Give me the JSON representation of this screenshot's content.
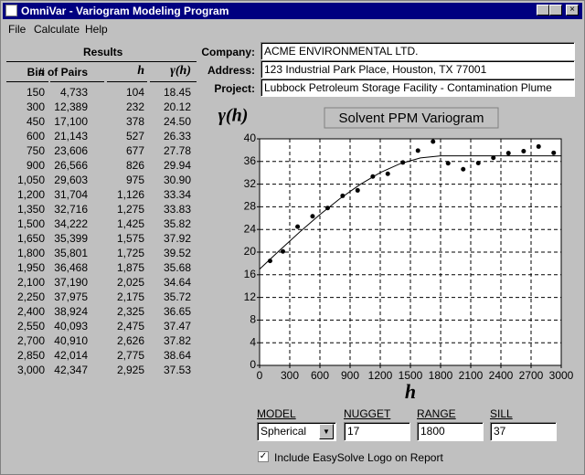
{
  "window": {
    "title": "OmniVar - Variogram Modeling Program"
  },
  "menu": [
    "File",
    "Calculate",
    "Help"
  ],
  "results": {
    "title": "Results",
    "columns": [
      "Bin",
      "# of Pairs",
      "h",
      "γ(h)"
    ],
    "rows": [
      [
        "150",
        "4,733",
        "104",
        "18.45"
      ],
      [
        "300",
        "12,389",
        "232",
        "20.12"
      ],
      [
        "450",
        "17,100",
        "378",
        "24.50"
      ],
      [
        "600",
        "21,143",
        "527",
        "26.33"
      ],
      [
        "750",
        "23,606",
        "677",
        "27.78"
      ],
      [
        "900",
        "26,566",
        "826",
        "29.94"
      ],
      [
        "1,050",
        "29,603",
        "975",
        "30.90"
      ],
      [
        "1,200",
        "31,704",
        "1,126",
        "33.34"
      ],
      [
        "1,350",
        "32,716",
        "1,275",
        "33.83"
      ],
      [
        "1,500",
        "34,222",
        "1,425",
        "35.82"
      ],
      [
        "1,650",
        "35,399",
        "1,575",
        "37.92"
      ],
      [
        "1,800",
        "35,801",
        "1,725",
        "39.52"
      ],
      [
        "1,950",
        "36,468",
        "1,875",
        "35.68"
      ],
      [
        "2,100",
        "37,190",
        "2,025",
        "34.64"
      ],
      [
        "2,250",
        "37,975",
        "2,175",
        "35.72"
      ],
      [
        "2,400",
        "38,924",
        "2,325",
        "36.65"
      ],
      [
        "2,550",
        "40,093",
        "2,475",
        "37.47"
      ],
      [
        "2,700",
        "40,910",
        "2,626",
        "37.82"
      ],
      [
        "2,850",
        "42,014",
        "2,775",
        "38.64"
      ],
      [
        "3,000",
        "42,347",
        "2,925",
        "37.53"
      ]
    ]
  },
  "form": [
    {
      "label": "Company:",
      "value": "ACME ENVIRONMENTAL LTD."
    },
    {
      "label": "Address:",
      "value": "123 Industrial Park Place, Houston, TX  77001"
    },
    {
      "label": "Project:",
      "value": "Lubbock Petroleum Storage Facility - Contamination Plume"
    }
  ],
  "chart_data": {
    "type": "scatter",
    "title": "Solvent PPM Variogram",
    "x_label": "h",
    "y_label": "γ(h)",
    "xlim": [
      0,
      3000
    ],
    "xticks": [
      0,
      300,
      600,
      900,
      1200,
      1500,
      1800,
      2100,
      2400,
      2700,
      3000
    ],
    "ylim": [
      0,
      40
    ],
    "yticks": [
      0,
      4,
      8,
      12,
      16,
      20,
      24,
      28,
      32,
      36,
      40
    ],
    "grid": true,
    "series": [
      {
        "mark": "point",
        "color": "#000000",
        "x": [
          104,
          232,
          378,
          527,
          677,
          826,
          975,
          1126,
          1275,
          1425,
          1575,
          1725,
          1875,
          2025,
          2175,
          2325,
          2475,
          2626,
          2775,
          2925
        ],
        "values": [
          18.45,
          20.12,
          24.5,
          26.33,
          27.78,
          29.94,
          30.9,
          33.34,
          33.83,
          35.82,
          37.92,
          39.52,
          35.68,
          34.64,
          35.72,
          36.65,
          37.47,
          37.82,
          38.64,
          37.53
        ]
      },
      {
        "mark": "line",
        "color": "#000000",
        "x": [
          0,
          200,
          400,
          600,
          800,
          1000,
          1200,
          1400,
          1600,
          1800,
          3000
        ],
        "values": [
          17,
          20.32,
          23.56,
          26.63,
          29.46,
          31.95,
          34.04,
          35.63,
          36.64,
          37,
          37
        ]
      }
    ]
  },
  "controls": {
    "model": {
      "label": "MODEL",
      "value": "Spherical"
    },
    "nugget": {
      "label": "NUGGET",
      "value": "17"
    },
    "range": {
      "label": "RANGE",
      "value": "1800"
    },
    "sill": {
      "label": "SILL",
      "value": "37"
    },
    "logo": {
      "label": "Include EasySolve Logo on Report",
      "checked": true
    }
  }
}
